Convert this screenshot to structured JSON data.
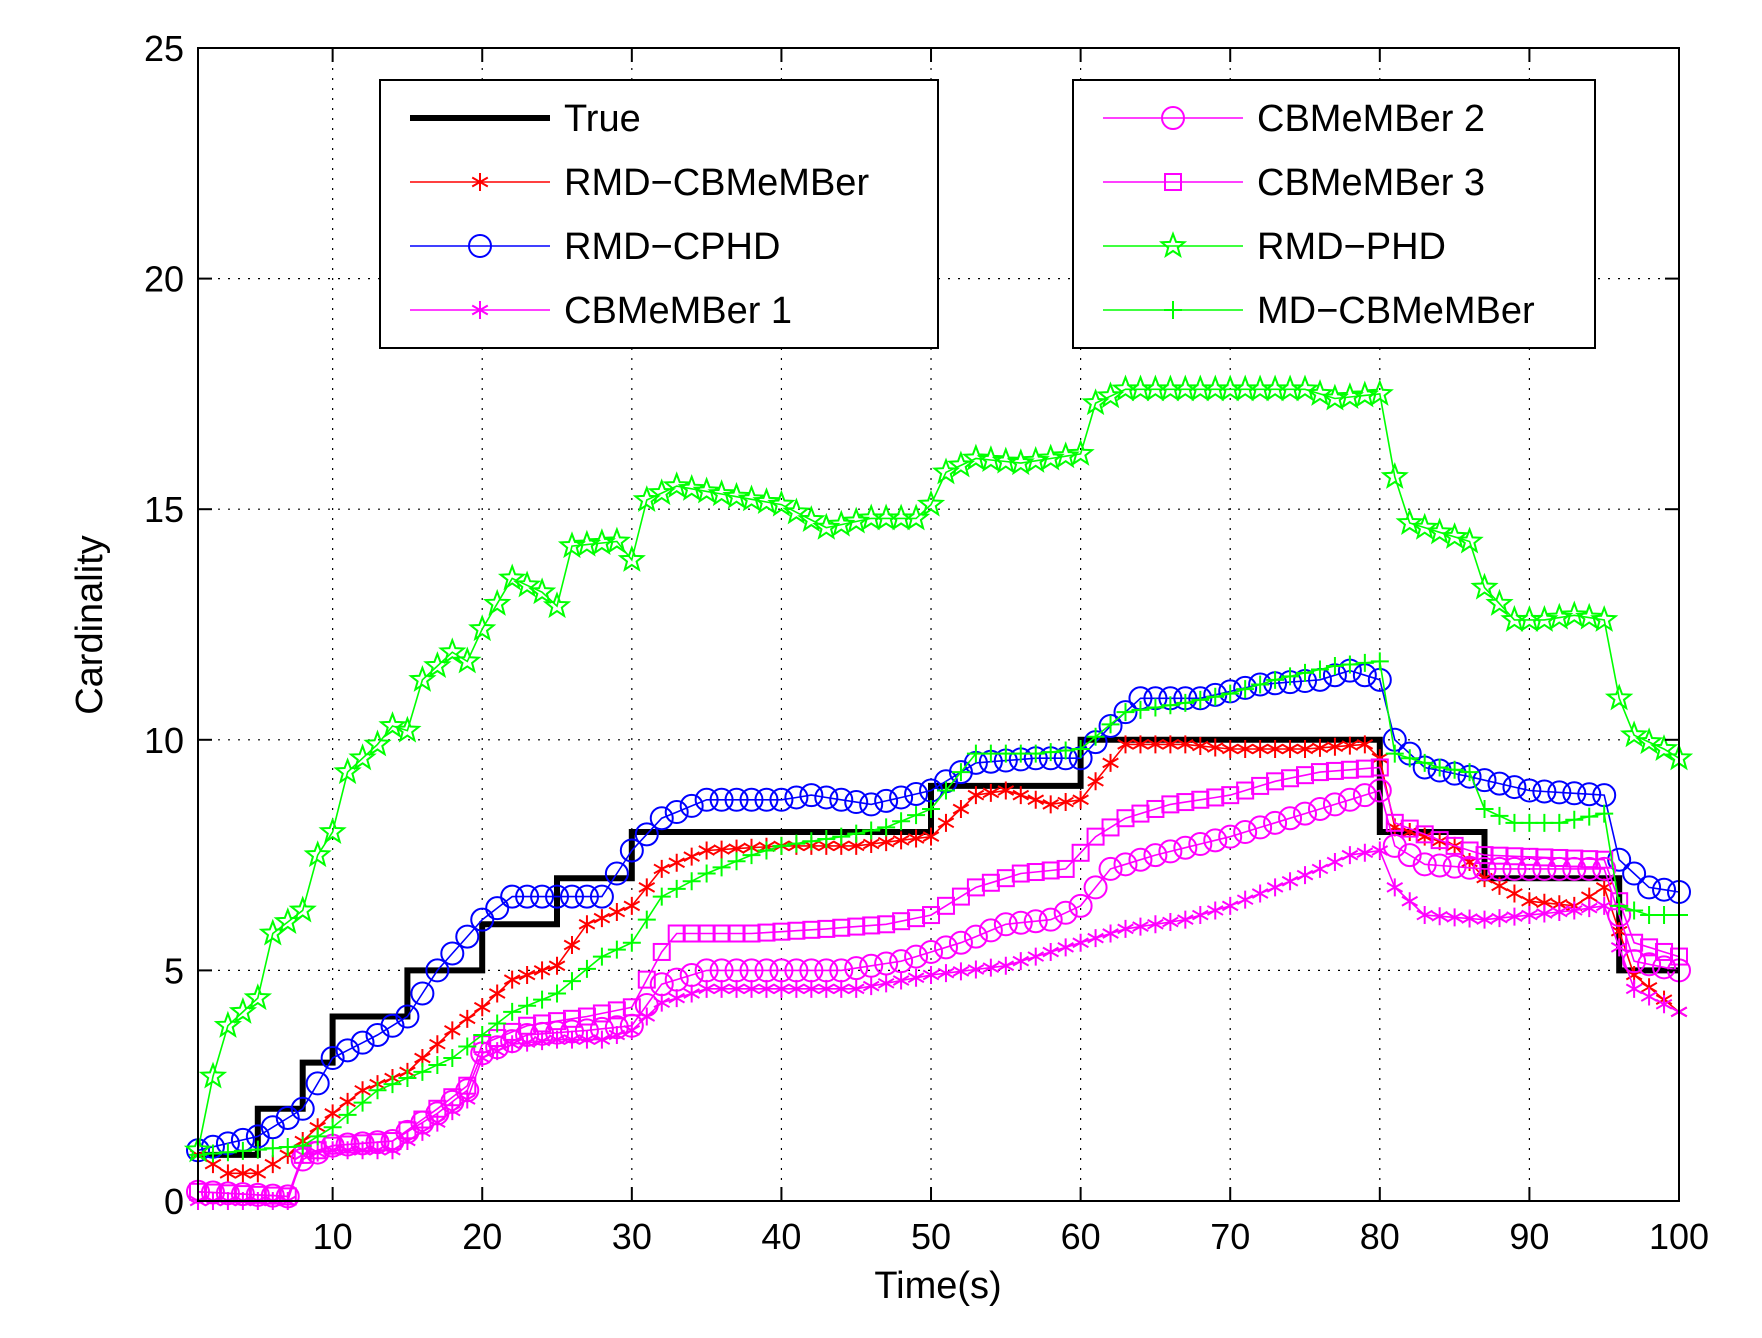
{
  "chart_data": {
    "type": "line",
    "title": "",
    "xlabel": "Time(s)",
    "ylabel": "Cardinality",
    "xlim": [
      1,
      100
    ],
    "ylim": [
      0,
      25
    ],
    "xticks": [
      10,
      20,
      30,
      40,
      50,
      60,
      70,
      80,
      90,
      100
    ],
    "yticks": [
      0,
      5,
      10,
      15,
      20,
      25
    ],
    "xtick_labels": [
      "10",
      "20",
      "30",
      "40",
      "50",
      "60",
      "70",
      "80",
      "90",
      "100"
    ],
    "ytick_labels": [
      "0",
      "5",
      "10",
      "15",
      "20",
      "25"
    ],
    "grid": true,
    "legend_placement": "top-left and top-right (two boxes)",
    "series": [
      {
        "name": "True",
        "color": "#000000",
        "marker": "none",
        "legend_box": 0,
        "values": [
          [
            1,
            1
          ],
          [
            5,
            1
          ],
          [
            5,
            2
          ],
          [
            8,
            2
          ],
          [
            8,
            3
          ],
          [
            10,
            3
          ],
          [
            10,
            4
          ],
          [
            15,
            4
          ],
          [
            15,
            5
          ],
          [
            20,
            5
          ],
          [
            20,
            6
          ],
          [
            25,
            6
          ],
          [
            25,
            7
          ],
          [
            30,
            7
          ],
          [
            30,
            8
          ],
          [
            50,
            8
          ],
          [
            50,
            9
          ],
          [
            60,
            9
          ],
          [
            60,
            10
          ],
          [
            80,
            10
          ],
          [
            80,
            8
          ],
          [
            87,
            8
          ],
          [
            87,
            7
          ],
          [
            96,
            7
          ],
          [
            96,
            5
          ],
          [
            100,
            5
          ]
        ]
      },
      {
        "name": "RMD−CBMeMBer",
        "color": "#ff0000",
        "marker": "asterisk",
        "legend_box": 0,
        "values": [
          [
            1,
            1.0
          ],
          [
            3,
            0.6
          ],
          [
            5,
            0.6
          ],
          [
            7,
            1.0
          ],
          [
            10,
            1.9
          ],
          [
            12,
            2.4
          ],
          [
            15,
            2.8
          ],
          [
            18,
            3.7
          ],
          [
            20,
            4.2
          ],
          [
            22,
            4.8
          ],
          [
            25,
            5.1
          ],
          [
            27,
            6.0
          ],
          [
            30,
            6.4
          ],
          [
            32,
            7.2
          ],
          [
            35,
            7.6
          ],
          [
            40,
            7.7
          ],
          [
            45,
            7.7
          ],
          [
            50,
            7.9
          ],
          [
            53,
            8.8
          ],
          [
            55,
            8.9
          ],
          [
            58,
            8.6
          ],
          [
            60,
            8.7
          ],
          [
            63,
            9.9
          ],
          [
            67,
            9.9
          ],
          [
            70,
            9.8
          ],
          [
            75,
            9.8
          ],
          [
            79,
            9.9
          ],
          [
            80,
            9.6
          ],
          [
            81,
            8.1
          ],
          [
            85,
            7.7
          ],
          [
            87,
            7.0
          ],
          [
            90,
            6.5
          ],
          [
            93,
            6.4
          ],
          [
            95,
            6.8
          ],
          [
            97,
            4.9
          ],
          [
            100,
            4.1
          ]
        ]
      },
      {
        "name": "RMD−CPHD",
        "color": "#0000ff",
        "marker": "circle",
        "legend_box": 0,
        "values": [
          [
            1,
            1.1
          ],
          [
            5,
            1.4
          ],
          [
            8,
            2.0
          ],
          [
            10,
            3.1
          ],
          [
            13,
            3.6
          ],
          [
            15,
            4.0
          ],
          [
            17,
            5.0
          ],
          [
            20,
            6.1
          ],
          [
            22,
            6.6
          ],
          [
            25,
            6.6
          ],
          [
            28,
            6.6
          ],
          [
            30,
            7.6
          ],
          [
            32,
            8.3
          ],
          [
            35,
            8.7
          ],
          [
            40,
            8.7
          ],
          [
            42,
            8.8
          ],
          [
            46,
            8.6
          ],
          [
            50,
            8.9
          ],
          [
            53,
            9.5
          ],
          [
            57,
            9.6
          ],
          [
            60,
            9.6
          ],
          [
            62,
            10.3
          ],
          [
            64,
            10.9
          ],
          [
            68,
            10.9
          ],
          [
            72,
            11.2
          ],
          [
            76,
            11.3
          ],
          [
            78,
            11.5
          ],
          [
            80,
            11.3
          ],
          [
            81,
            10.0
          ],
          [
            83,
            9.4
          ],
          [
            86,
            9.2
          ],
          [
            90,
            8.9
          ],
          [
            95,
            8.8
          ],
          [
            96,
            7.4
          ],
          [
            98,
            6.8
          ],
          [
            100,
            6.7
          ]
        ]
      },
      {
        "name": "CBMeMBer 1",
        "color": "#ff00ff",
        "marker": "asterisk",
        "legend_box": 0,
        "values": [
          [
            1,
            0
          ],
          [
            7,
            0
          ],
          [
            8,
            1.0
          ],
          [
            10,
            1.1
          ],
          [
            14,
            1.1
          ],
          [
            17,
            1.7
          ],
          [
            19,
            2.2
          ],
          [
            20,
            3.1
          ],
          [
            22,
            3.4
          ],
          [
            25,
            3.5
          ],
          [
            28,
            3.5
          ],
          [
            30,
            3.7
          ],
          [
            32,
            4.3
          ],
          [
            35,
            4.6
          ],
          [
            40,
            4.6
          ],
          [
            45,
            4.6
          ],
          [
            50,
            4.9
          ],
          [
            55,
            5.1
          ],
          [
            60,
            5.6
          ],
          [
            63,
            5.9
          ],
          [
            67,
            6.1
          ],
          [
            70,
            6.4
          ],
          [
            73,
            6.8
          ],
          [
            76,
            7.2
          ],
          [
            78,
            7.5
          ],
          [
            80,
            7.6
          ],
          [
            81,
            6.8
          ],
          [
            83,
            6.2
          ],
          [
            87,
            6.1
          ],
          [
            90,
            6.2
          ],
          [
            93,
            6.3
          ],
          [
            95,
            6.4
          ],
          [
            97,
            4.6
          ],
          [
            100,
            4.1
          ]
        ]
      },
      {
        "name": "CBMeMBer 2",
        "color": "#ff00ff",
        "marker": "circle",
        "legend_box": 1,
        "values": [
          [
            1,
            0.2
          ],
          [
            7,
            0.1
          ],
          [
            8,
            0.9
          ],
          [
            10,
            1.2
          ],
          [
            14,
            1.3
          ],
          [
            17,
            1.9
          ],
          [
            19,
            2.4
          ],
          [
            20,
            3.2
          ],
          [
            23,
            3.6
          ],
          [
            27,
            3.7
          ],
          [
            30,
            3.8
          ],
          [
            32,
            4.7
          ],
          [
            35,
            5.0
          ],
          [
            40,
            5.0
          ],
          [
            44,
            5.0
          ],
          [
            48,
            5.2
          ],
          [
            52,
            5.6
          ],
          [
            55,
            6.0
          ],
          [
            58,
            6.1
          ],
          [
            60,
            6.4
          ],
          [
            62,
            7.2
          ],
          [
            65,
            7.5
          ],
          [
            70,
            7.9
          ],
          [
            73,
            8.2
          ],
          [
            76,
            8.5
          ],
          [
            80,
            8.9
          ],
          [
            81,
            7.7
          ],
          [
            83,
            7.3
          ],
          [
            87,
            7.2
          ],
          [
            90,
            7.2
          ],
          [
            95,
            7.2
          ],
          [
            97,
            5.2
          ],
          [
            100,
            5.0
          ]
        ]
      },
      {
        "name": "CBMeMBer 3",
        "color": "#ff00ff",
        "marker": "square",
        "legend_box": 1,
        "values": [
          [
            1,
            0.2
          ],
          [
            7,
            0.1
          ],
          [
            8,
            1.0
          ],
          [
            10,
            1.2
          ],
          [
            14,
            1.3
          ],
          [
            17,
            2.0
          ],
          [
            19,
            2.5
          ],
          [
            20,
            3.4
          ],
          [
            23,
            3.8
          ],
          [
            27,
            4.0
          ],
          [
            30,
            4.2
          ],
          [
            32,
            5.4
          ],
          [
            33,
            5.8
          ],
          [
            38,
            5.8
          ],
          [
            43,
            5.9
          ],
          [
            47,
            6.0
          ],
          [
            50,
            6.2
          ],
          [
            53,
            6.8
          ],
          [
            56,
            7.1
          ],
          [
            59,
            7.2
          ],
          [
            61,
            7.9
          ],
          [
            63,
            8.3
          ],
          [
            66,
            8.6
          ],
          [
            70,
            8.8
          ],
          [
            73,
            9.1
          ],
          [
            76,
            9.3
          ],
          [
            80,
            9.4
          ],
          [
            81,
            8.2
          ],
          [
            85,
            7.7
          ],
          [
            87,
            7.5
          ],
          [
            95,
            7.4
          ],
          [
            97,
            5.6
          ],
          [
            100,
            5.3
          ]
        ]
      },
      {
        "name": "RMD−PHD",
        "color": "#00ff00",
        "marker": "pentagram",
        "legend_box": 1,
        "values": [
          [
            1,
            1.1
          ],
          [
            2,
            2.7
          ],
          [
            3,
            3.8
          ],
          [
            5,
            4.4
          ],
          [
            6,
            5.8
          ],
          [
            8,
            6.3
          ],
          [
            9,
            7.5
          ],
          [
            10,
            8.0
          ],
          [
            11,
            9.3
          ],
          [
            13,
            9.9
          ],
          [
            14,
            10.3
          ],
          [
            15,
            10.2
          ],
          [
            16,
            11.3
          ],
          [
            18,
            11.9
          ],
          [
            19,
            11.7
          ],
          [
            20,
            12.4
          ],
          [
            22,
            13.5
          ],
          [
            24,
            13.2
          ],
          [
            25,
            12.9
          ],
          [
            26,
            14.2
          ],
          [
            29,
            14.3
          ],
          [
            30,
            13.9
          ],
          [
            31,
            15.2
          ],
          [
            33,
            15.5
          ],
          [
            40,
            15.1
          ],
          [
            43,
            14.6
          ],
          [
            46,
            14.8
          ],
          [
            49,
            14.8
          ],
          [
            50,
            15.1
          ],
          [
            51,
            15.8
          ],
          [
            53,
            16.1
          ],
          [
            56,
            16.0
          ],
          [
            60,
            16.2
          ],
          [
            61,
            17.3
          ],
          [
            63,
            17.6
          ],
          [
            70,
            17.6
          ],
          [
            75,
            17.6
          ],
          [
            77,
            17.4
          ],
          [
            80,
            17.5
          ],
          [
            81,
            15.7
          ],
          [
            82,
            14.7
          ],
          [
            84,
            14.5
          ],
          [
            86,
            14.3
          ],
          [
            87,
            13.3
          ],
          [
            89,
            12.6
          ],
          [
            91,
            12.6
          ],
          [
            93,
            12.7
          ],
          [
            95,
            12.6
          ],
          [
            96,
            10.9
          ],
          [
            97,
            10.1
          ],
          [
            99,
            9.8
          ],
          [
            100,
            9.6
          ]
        ]
      },
      {
        "name": "MD−CBMeMBer",
        "color": "#00ff00",
        "marker": "plus",
        "legend_box": 1,
        "values": [
          [
            1,
            1.0
          ],
          [
            8,
            1.2
          ],
          [
            10,
            1.6
          ],
          [
            13,
            2.4
          ],
          [
            16,
            2.8
          ],
          [
            18,
            3.1
          ],
          [
            20,
            3.6
          ],
          [
            22,
            4.1
          ],
          [
            25,
            4.5
          ],
          [
            28,
            5.3
          ],
          [
            30,
            5.6
          ],
          [
            32,
            6.6
          ],
          [
            35,
            7.1
          ],
          [
            38,
            7.5
          ],
          [
            40,
            7.7
          ],
          [
            44,
            7.9
          ],
          [
            47,
            8.1
          ],
          [
            50,
            8.5
          ],
          [
            53,
            9.7
          ],
          [
            57,
            9.7
          ],
          [
            60,
            9.8
          ],
          [
            63,
            10.6
          ],
          [
            67,
            10.8
          ],
          [
            70,
            11.0
          ],
          [
            73,
            11.3
          ],
          [
            77,
            11.6
          ],
          [
            80,
            11.7
          ],
          [
            81,
            9.7
          ],
          [
            84,
            9.4
          ],
          [
            86,
            9.3
          ],
          [
            87,
            8.5
          ],
          [
            89,
            8.2
          ],
          [
            92,
            8.2
          ],
          [
            95,
            8.4
          ],
          [
            96,
            6.4
          ],
          [
            98,
            6.2
          ],
          [
            100,
            6.2
          ]
        ]
      }
    ]
  }
}
